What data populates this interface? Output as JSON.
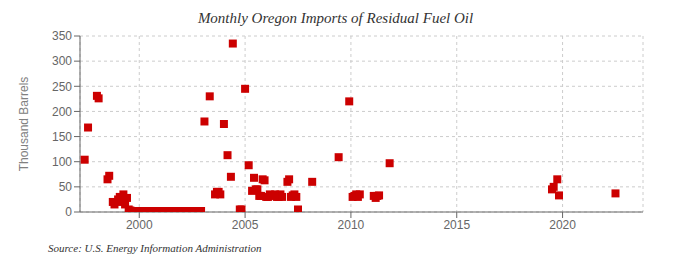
{
  "chart_data": {
    "type": "scatter",
    "title": "Monthly Oregon Imports of Residual Fuel Oil",
    "ylabel": "Thousand Barrels",
    "annotations": [
      "Source: U.S. Energy Information Administration"
    ],
    "color": "#cc0000",
    "marker": "square",
    "grid": true,
    "xlim": [
      1997.2,
      2023.8
    ],
    "ylim": [
      0,
      350
    ],
    "xticks": [
      2000,
      2005,
      2010,
      2015,
      2020
    ],
    "yticks": [
      0,
      50,
      100,
      150,
      200,
      250,
      300,
      350
    ],
    "x": [
      1997.42,
      1997.58,
      1998.0,
      1998.08,
      1998.5,
      1998.58,
      1998.75,
      1998.83,
      1999.0,
      1999.08,
      1999.17,
      1999.25,
      1999.33,
      1999.42,
      1999.5,
      1999.58,
      1999.67,
      1999.75,
      1999.83,
      1999.92,
      2000.0,
      2000.08,
      2000.17,
      2000.25,
      2000.33,
      2000.5,
      2000.58,
      2000.67,
      2000.75,
      2000.83,
      2001.0,
      2001.08,
      2001.17,
      2001.25,
      2001.33,
      2001.42,
      2001.5,
      2001.58,
      2001.67,
      2001.75,
      2001.83,
      2001.92,
      2002.0,
      2002.08,
      2002.17,
      2002.25,
      2002.33,
      2002.42,
      2002.5,
      2002.58,
      2002.67,
      2002.75,
      2002.83,
      2002.92,
      2003.08,
      2003.33,
      2003.58,
      2003.67,
      2003.75,
      2003.83,
      2004.0,
      2004.17,
      2004.33,
      2004.42,
      2004.75,
      2004.83,
      2005.0,
      2005.17,
      2005.33,
      2005.42,
      2005.5,
      2005.58,
      2005.67,
      2005.75,
      2005.83,
      2005.92,
      2006.0,
      2006.08,
      2006.17,
      2006.25,
      2006.33,
      2006.42,
      2006.5,
      2006.58,
      2006.67,
      2006.75,
      2007.0,
      2007.08,
      2007.17,
      2007.25,
      2007.33,
      2007.42,
      2007.5,
      2008.17,
      2009.42,
      2009.92,
      2010.08,
      2010.17,
      2010.25,
      2010.33,
      2010.42,
      2011.08,
      2011.17,
      2011.25,
      2011.33,
      2011.83,
      2019.5,
      2019.58,
      2019.75,
      2019.83,
      2022.5
    ],
    "values": [
      104,
      168,
      231,
      226,
      65,
      72,
      20,
      15,
      25,
      30,
      20,
      35,
      15,
      28,
      5,
      3,
      2,
      2,
      2,
      2,
      2,
      2,
      2,
      2,
      2,
      2,
      2,
      2,
      2,
      2,
      2,
      2,
      2,
      2,
      2,
      2,
      2,
      2,
      2,
      2,
      2,
      2,
      2,
      2,
      2,
      2,
      2,
      2,
      2,
      2,
      2,
      2,
      2,
      2,
      180,
      230,
      35,
      40,
      40,
      35,
      175,
      113,
      70,
      335,
      5,
      5,
      245,
      93,
      42,
      68,
      45,
      45,
      32,
      32,
      65,
      63,
      30,
      30,
      35,
      33,
      32,
      35,
      30,
      30,
      35,
      30,
      60,
      65,
      30,
      33,
      35,
      30,
      5,
      60,
      109,
      220,
      30,
      32,
      35,
      30,
      35,
      32,
      28,
      32,
      33,
      97,
      45,
      50,
      65,
      33,
      37
    ]
  }
}
